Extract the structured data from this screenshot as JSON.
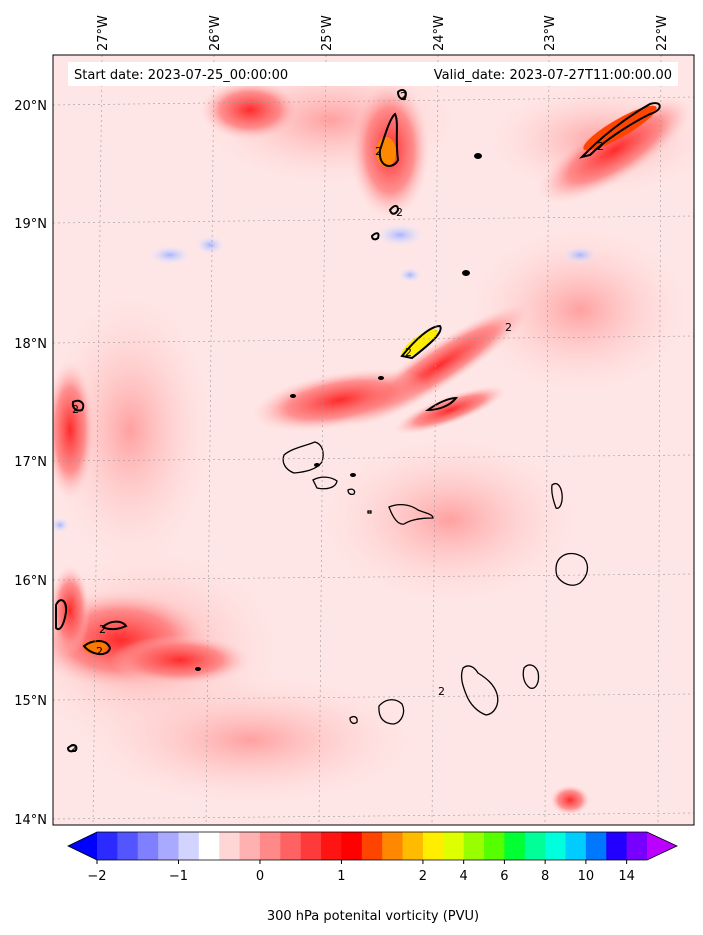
{
  "map": {
    "start_label": "Start date: 2023-07-25_00:00:00",
    "valid_label": "Valid_date: 2023-07-27T11:00:00.00",
    "lon_ticks": [
      "27°W",
      "26°W",
      "25°W",
      "24°W",
      "23°W",
      "22°W"
    ],
    "lat_ticks": [
      "20°N",
      "19°N",
      "18°N",
      "17°N",
      "16°N",
      "15°N",
      "14°N"
    ],
    "contour_label": "2"
  },
  "colorbar": {
    "title": "300 hPa potenital vorticity (PVU)",
    "tick_labels": [
      "−2",
      "−1",
      "0",
      "1",
      "2",
      "4",
      "6",
      "8",
      "10",
      "14"
    ],
    "colors": [
      "#0000ff",
      "#2b2bff",
      "#5555ff",
      "#7f7fff",
      "#a9a9ff",
      "#d3d3ff",
      "#ffffff",
      "#ffd6d6",
      "#ffb0b0",
      "#ff8888",
      "#ff6262",
      "#ff3a3a",
      "#ff1414",
      "#ff0000",
      "#ff4400",
      "#ff8800",
      "#ffbb00",
      "#ffee00",
      "#ddff00",
      "#99ff00",
      "#55ff00",
      "#00ff33",
      "#00ff99",
      "#00ffdd",
      "#00ccff",
      "#0077ff",
      "#2200ff",
      "#7700ff",
      "#bb00ff"
    ]
  }
}
